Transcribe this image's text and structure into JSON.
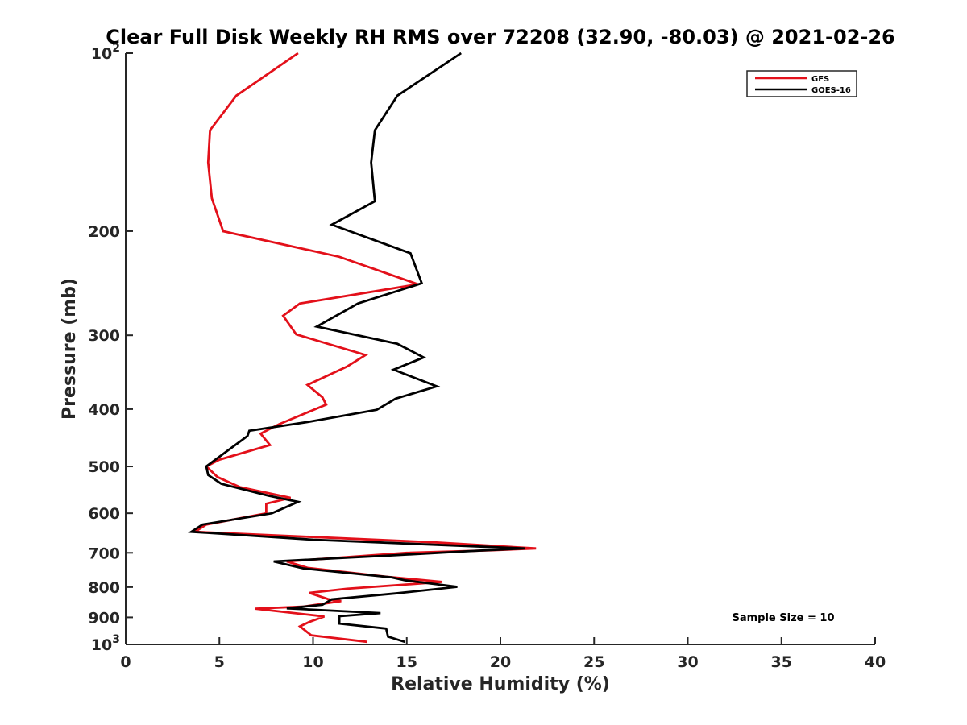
{
  "chart_data": {
    "type": "line",
    "title": "Clear Full Disk Weekly RH RMS over 72208 (32.90, -80.03) @ 2021-02-26",
    "xlabel": "Relative Humidity (%)",
    "ylabel": "Pressure (mb)",
    "xlim": [
      0,
      40
    ],
    "ylim": [
      100,
      1000
    ],
    "y_scale": "log",
    "y_reversed": true,
    "grid": false,
    "legend_position": "top-right",
    "annotation": "Sample Size = 10",
    "x_ticks": [
      {
        "value": 0,
        "label": "0"
      },
      {
        "value": 5,
        "label": "5"
      },
      {
        "value": 10,
        "label": "10"
      },
      {
        "value": 15,
        "label": "15"
      },
      {
        "value": 20,
        "label": "20"
      },
      {
        "value": 25,
        "label": "25"
      },
      {
        "value": 30,
        "label": "30"
      },
      {
        "value": 35,
        "label": "35"
      },
      {
        "value": 40,
        "label": "40"
      }
    ],
    "y_ticks": [
      {
        "value": 100,
        "label": "10",
        "sup": "2"
      },
      {
        "value": 200,
        "label": "200",
        "sup": ""
      },
      {
        "value": 300,
        "label": "300",
        "sup": ""
      },
      {
        "value": 400,
        "label": "400",
        "sup": ""
      },
      {
        "value": 500,
        "label": "500",
        "sup": ""
      },
      {
        "value": 600,
        "label": "600",
        "sup": ""
      },
      {
        "value": 700,
        "label": "700",
        "sup": ""
      },
      {
        "value": 800,
        "label": "800",
        "sup": ""
      },
      {
        "value": 900,
        "label": "900",
        "sup": ""
      },
      {
        "value": 1000,
        "label": "10",
        "sup": "3"
      }
    ],
    "series": [
      {
        "name": "GFS",
        "color": "#e3101a",
        "points": [
          [
            9.2,
            100
          ],
          [
            5.9,
            118
          ],
          [
            4.5,
            135
          ],
          [
            4.4,
            153
          ],
          [
            4.6,
            176
          ],
          [
            5.2,
            200
          ],
          [
            11.4,
            221
          ],
          [
            15.6,
            246
          ],
          [
            9.3,
            265
          ],
          [
            8.4,
            278
          ],
          [
            9.1,
            299
          ],
          [
            12.8,
            324
          ],
          [
            11.8,
            339
          ],
          [
            9.7,
            364
          ],
          [
            10.5,
            382
          ],
          [
            10.7,
            393
          ],
          [
            8.2,
            424
          ],
          [
            7.2,
            440
          ],
          [
            7.7,
            460
          ],
          [
            5.0,
            487
          ],
          [
            4.3,
            500
          ],
          [
            4.9,
            521
          ],
          [
            6.1,
            542
          ],
          [
            8.8,
            565
          ],
          [
            7.5,
            578
          ],
          [
            7.5,
            600
          ],
          [
            4.3,
            627
          ],
          [
            3.7,
            645
          ],
          [
            16.5,
            672
          ],
          [
            21.9,
            688
          ],
          [
            19.6,
            693
          ],
          [
            15.0,
            700
          ],
          [
            8.6,
            724
          ],
          [
            9.7,
            742
          ],
          [
            13.9,
            768
          ],
          [
            16.9,
            784
          ],
          [
            11.8,
            805
          ],
          [
            9.8,
            818
          ],
          [
            10.8,
            838
          ],
          [
            11.5,
            845
          ],
          [
            9.5,
            863
          ],
          [
            6.9,
            870
          ],
          [
            10.6,
            897
          ],
          [
            9.8,
            916
          ],
          [
            9.3,
            932
          ],
          [
            9.9,
            965
          ],
          [
            12.9,
            990
          ]
        ]
      },
      {
        "name": "GOES-16",
        "color": "#000000",
        "points": [
          [
            17.9,
            100
          ],
          [
            14.5,
            118
          ],
          [
            13.3,
            135
          ],
          [
            13.1,
            153
          ],
          [
            13.3,
            178
          ],
          [
            11.0,
            195
          ],
          [
            15.2,
            218
          ],
          [
            15.8,
            245
          ],
          [
            12.4,
            265
          ],
          [
            10.2,
            290
          ],
          [
            14.5,
            310
          ],
          [
            15.9,
            327
          ],
          [
            14.3,
            343
          ],
          [
            16.6,
            366
          ],
          [
            14.4,
            384
          ],
          [
            13.4,
            401
          ],
          [
            9.8,
            420
          ],
          [
            6.6,
            435
          ],
          [
            6.5,
            444
          ],
          [
            4.3,
            500
          ],
          [
            4.4,
            517
          ],
          [
            5.1,
            535
          ],
          [
            7.6,
            560
          ],
          [
            9.2,
            574
          ],
          [
            7.8,
            600
          ],
          [
            4.1,
            627
          ],
          [
            3.5,
            645
          ],
          [
            10.0,
            665
          ],
          [
            21.3,
            688
          ],
          [
            18.5,
            695
          ],
          [
            14.2,
            707
          ],
          [
            7.9,
            724
          ],
          [
            9.5,
            744
          ],
          [
            14.2,
            770
          ],
          [
            14.9,
            779
          ],
          [
            17.7,
            799
          ],
          [
            14.4,
            820
          ],
          [
            11.0,
            839
          ],
          [
            10.5,
            857
          ],
          [
            8.6,
            869
          ],
          [
            13.6,
            885
          ],
          [
            11.4,
            896
          ],
          [
            11.4,
            922
          ],
          [
            13.9,
            940
          ],
          [
            14.0,
            970
          ],
          [
            14.9,
            990
          ]
        ]
      }
    ]
  }
}
